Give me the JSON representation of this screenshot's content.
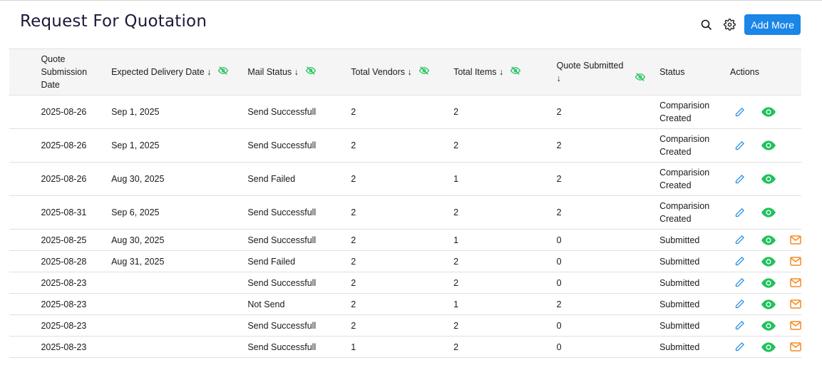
{
  "header": {
    "title": "Request For Quotation",
    "add_more_label": "Add More"
  },
  "colors": {
    "accent": "#1a86e8",
    "view": "#1ec25c",
    "mail": "#f5891f",
    "edit": "#2b8fe6"
  },
  "columns": [
    {
      "label": "Quote Submission Date",
      "sortable": false,
      "hide": false
    },
    {
      "label": "Expected Delivery Date ↓",
      "hide": true
    },
    {
      "label": "Mail Status ↓",
      "hide": true
    },
    {
      "label": "Total Vendors ↓",
      "hide": true
    },
    {
      "label": "Total Items ↓",
      "hide": true
    },
    {
      "label": "Quote Submitted ↓",
      "hide": true
    },
    {
      "label": "Status",
      "hide": false
    },
    {
      "label": "Actions",
      "hide": false
    }
  ],
  "rows": [
    {
      "date": "2025-08-26",
      "delivery": "Sep 1, 2025",
      "mail": "Send Successfull",
      "vendors": "2",
      "items": "2",
      "quotes": "2",
      "status": "Comparision Created",
      "mail_action": false
    },
    {
      "date": "2025-08-26",
      "delivery": "Sep 1, 2025",
      "mail": "Send Successfull",
      "vendors": "2",
      "items": "2",
      "quotes": "2",
      "status": "Comparision Created",
      "mail_action": false
    },
    {
      "date": "2025-08-26",
      "delivery": "Aug 30, 2025",
      "mail": "Send Failed",
      "vendors": "2",
      "items": "1",
      "quotes": "2",
      "status": "Comparision Created",
      "mail_action": false
    },
    {
      "date": "2025-08-31",
      "delivery": "Sep 6, 2025",
      "mail": "Send Successfull",
      "vendors": "2",
      "items": "2",
      "quotes": "2",
      "status": "Comparision Created",
      "mail_action": false
    },
    {
      "date": "2025-08-25",
      "delivery": "Aug 30, 2025",
      "mail": "Send Successfull",
      "vendors": "2",
      "items": "1",
      "quotes": "0",
      "status": "Submitted",
      "mail_action": true
    },
    {
      "date": "2025-08-28",
      "delivery": "Aug 31, 2025",
      "mail": "Send Failed",
      "vendors": "2",
      "items": "2",
      "quotes": "0",
      "status": "Submitted",
      "mail_action": true
    },
    {
      "date": "2025-08-23",
      "delivery": "",
      "mail": "Send Successfull",
      "vendors": "2",
      "items": "2",
      "quotes": "0",
      "status": "Submitted",
      "mail_action": true
    },
    {
      "date": "2025-08-23",
      "delivery": "",
      "mail": "Not Send",
      "vendors": "2",
      "items": "1",
      "quotes": "2",
      "status": "Submitted",
      "mail_action": true
    },
    {
      "date": "2025-08-23",
      "delivery": "",
      "mail": "Send Successfull",
      "vendors": "2",
      "items": "2",
      "quotes": "0",
      "status": "Submitted",
      "mail_action": true
    },
    {
      "date": "2025-08-23",
      "delivery": "",
      "mail": "Send Successfull",
      "vendors": "1",
      "items": "2",
      "quotes": "0",
      "status": "Submitted",
      "mail_action": true
    }
  ]
}
